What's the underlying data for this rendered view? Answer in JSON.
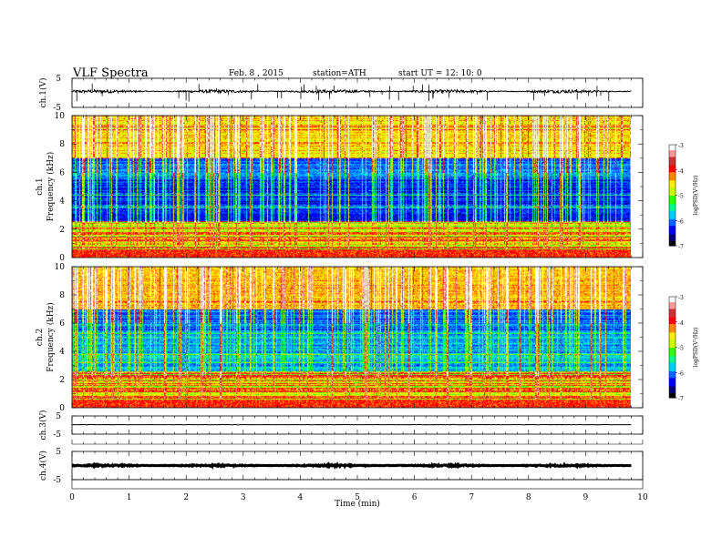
{
  "header": {
    "title": "VLF  Spectra",
    "date": "Feb. 8  , 2015",
    "station": "station=ATH",
    "start": "start  UT  =    12: 10: 0"
  },
  "colors": {
    "cmap": [
      "#000000",
      "#00007a",
      "#0000ff",
      "#0066ff",
      "#00ccff",
      "#00ff88",
      "#33ff00",
      "#ccff00",
      "#ffee00",
      "#ff8800",
      "#ff0000",
      "#cc3333",
      "#ff9999",
      "#ffffff"
    ],
    "trace": "#000000"
  },
  "chart_data": [
    {
      "type": "line",
      "name": "ch.1 waveform",
      "ylabel": "ch.1(V)",
      "ylim": [
        -5,
        5
      ],
      "yticks": [
        "5",
        "-5"
      ],
      "xlim": [
        0,
        10
      ],
      "level": 0.5,
      "noise": 0.35,
      "spikes": 0.9
    },
    {
      "type": "heatmap",
      "name": "ch.1 spectrogram",
      "ylabel_top": "ch.1",
      "ylabel": "Frequency  (kHz)",
      "ylim": [
        0,
        10
      ],
      "yticks": [
        "0",
        "2",
        "4",
        "6",
        "8",
        "10"
      ],
      "xlim": [
        0,
        9.8
      ],
      "colorbar": {
        "label": "logPSD(V²/Hz)",
        "range": [
          -7,
          -3
        ],
        "ticks": [
          "-3",
          "-4",
          "-5",
          "-6",
          "-7"
        ]
      }
    },
    {
      "type": "heatmap",
      "name": "ch.2 spectrogram",
      "ylabel_top": "ch.2",
      "ylabel": "Frequency  (kHz)",
      "ylim": [
        0,
        10
      ],
      "yticks": [
        "0",
        "2",
        "4",
        "6",
        "8",
        "10"
      ],
      "xlim": [
        0,
        9.8
      ],
      "colorbar": {
        "label": "logPSD(V²/Hz)",
        "range": [
          -7,
          -3
        ],
        "ticks": [
          "-3",
          "-4",
          "-5",
          "-6",
          "-7"
        ]
      }
    },
    {
      "type": "line",
      "name": "ch.3 waveform",
      "ylabel": "ch.3(V)",
      "ylim": [
        -5,
        5
      ],
      "yticks": [
        "5",
        "-5"
      ],
      "xlim": [
        0,
        10
      ],
      "level": 0.2,
      "noise": 0.08,
      "spikes": 0
    },
    {
      "type": "line",
      "name": "ch.4 waveform",
      "ylabel": "ch.4(V)",
      "ylim": [
        -5,
        5
      ],
      "yticks": [
        "5",
        "-5"
      ],
      "xlim": [
        0,
        10
      ],
      "level": 0.0,
      "noise": 0.18,
      "spikes": 0
    }
  ],
  "xaxis": {
    "label": "Time  (min)",
    "ticks": [
      "0",
      "1",
      "2",
      "3",
      "4",
      "5",
      "6",
      "7",
      "8",
      "9",
      "10"
    ],
    "range": [
      0,
      10
    ],
    "data_end": 9.8
  }
}
